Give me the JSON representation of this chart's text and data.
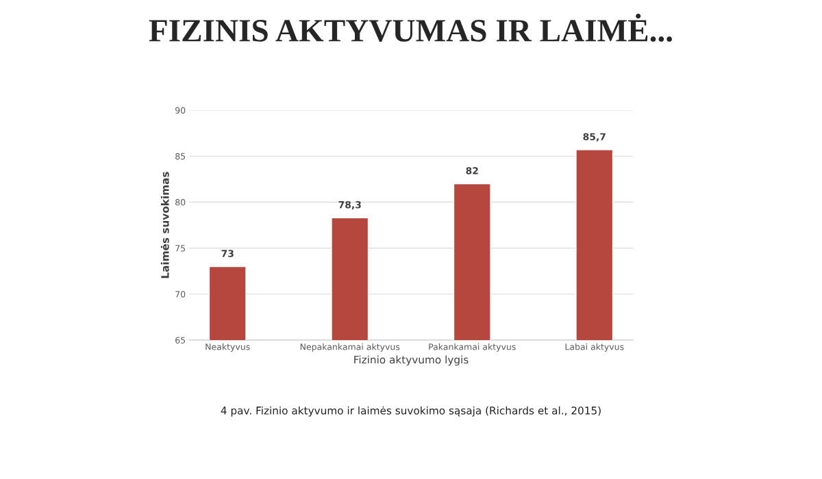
{
  "chart_data": {
    "type": "bar",
    "title": "FIZINIS AKTYVUMAS IR LAIMĖ...",
    "categories": [
      "Neaktyvus",
      "Nepakankamai aktyvus",
      "Pakankamai aktyvus",
      "Labai aktyvus"
    ],
    "values": [
      73,
      78.3,
      82,
      85.7
    ],
    "value_labels": [
      "73",
      "78,3",
      "82",
      "85,7"
    ],
    "color": "#b5473f",
    "xlabel": "Fizinio aktyvumo lygis",
    "ylabel": "Laimės suvokimas",
    "ylim": [
      65,
      90
    ],
    "yticks": [
      65,
      70,
      75,
      80,
      85,
      90
    ],
    "grid": "y",
    "annotations": [
      "4 pav. Fizinio aktyvumo ir laimės suvokimo sąsaja (Richards et al., 2015)"
    ]
  }
}
